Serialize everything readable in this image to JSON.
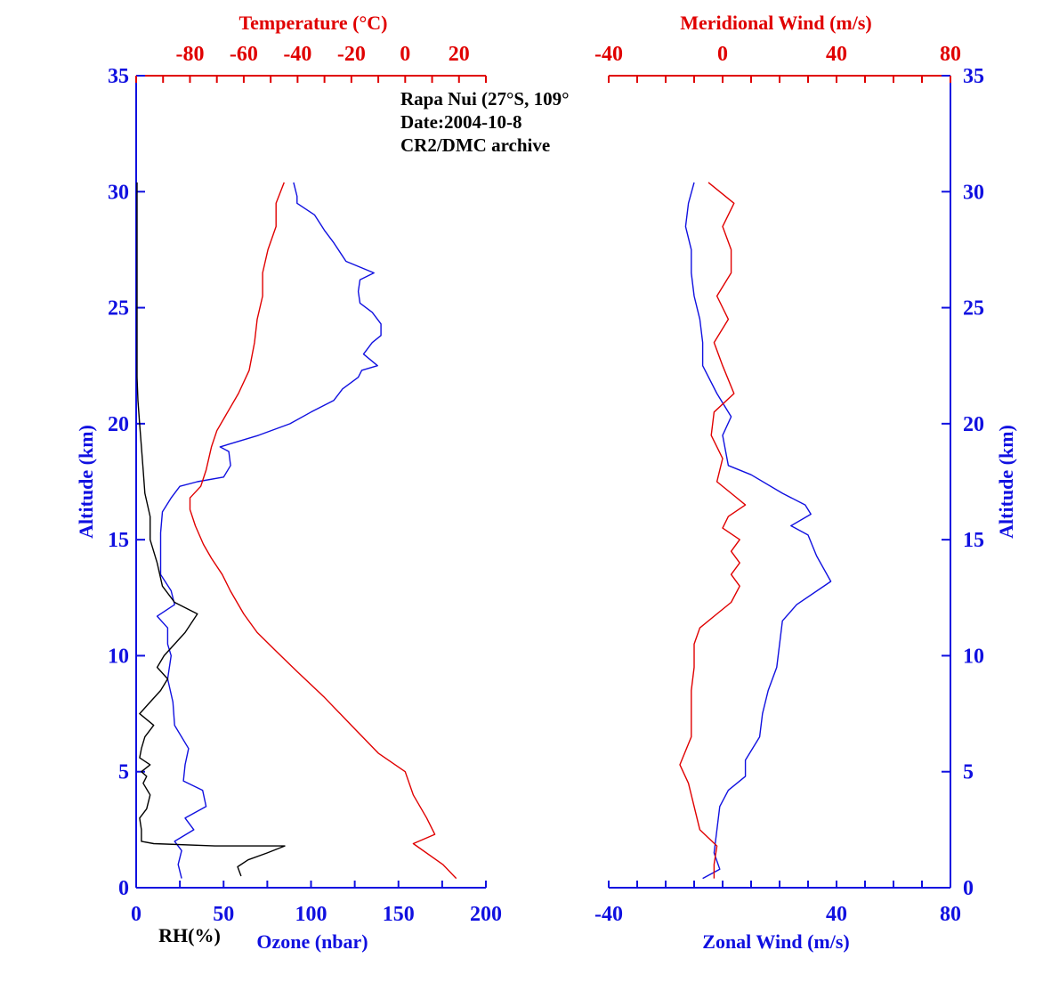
{
  "chart_data": [
    {
      "type": "line",
      "panel": "left",
      "annotation": [
        "Rapa Nui (27°S, 109°",
        "Date:2004-10-8",
        "CR2/DMC archive"
      ],
      "y_axis": {
        "label": "Altitude (km)",
        "range": [
          0,
          35
        ],
        "ticks": [
          0,
          5,
          10,
          15,
          20,
          25,
          30,
          35
        ]
      },
      "x_bottom": {
        "label_rh": "RH(%)",
        "label_ozone": "Ozone (nbar)",
        "range": [
          0,
          200
        ],
        "ticks": [
          0,
          50,
          100,
          150,
          200
        ]
      },
      "x_top": {
        "label": "Temperature (°C)",
        "range": [
          -100,
          30
        ],
        "ticks": [
          -80,
          -60,
          -40,
          -20,
          0,
          20
        ]
      },
      "series": [
        {
          "name": "Ozone (nbar)",
          "axis": "bottom",
          "color": "#1010e0",
          "points": [
            [
              26,
              0.4
            ],
            [
              24,
              1
            ],
            [
              26,
              1.6
            ],
            [
              22,
              2
            ],
            [
              33,
              2.5
            ],
            [
              28,
              3.0
            ],
            [
              40,
              3.5
            ],
            [
              38,
              4.2
            ],
            [
              27,
              4.6
            ],
            [
              28,
              5.3
            ],
            [
              30,
              6
            ],
            [
              22,
              7
            ],
            [
              21,
              8
            ],
            [
              18,
              9
            ],
            [
              20,
              10
            ],
            [
              18,
              10.5
            ],
            [
              18,
              11.2
            ],
            [
              12,
              11.7
            ],
            [
              22,
              12.2
            ],
            [
              20,
              12.8
            ],
            [
              14,
              13.5
            ],
            [
              14,
              14.5
            ],
            [
              14,
              15.3
            ],
            [
              15,
              16.2
            ],
            [
              20,
              16.8
            ],
            [
              25,
              17.3
            ],
            [
              35,
              17.5
            ],
            [
              50,
              17.7
            ],
            [
              54,
              18.2
            ],
            [
              53,
              18.8
            ],
            [
              48,
              19
            ],
            [
              70,
              19.5
            ],
            [
              88,
              20
            ],
            [
              100,
              20.5
            ],
            [
              113,
              21
            ],
            [
              118,
              21.5
            ],
            [
              127,
              22
            ],
            [
              129,
              22.3
            ],
            [
              138,
              22.5
            ],
            [
              130,
              23
            ],
            [
              135,
              23.5
            ],
            [
              140,
              23.8
            ],
            [
              140,
              24.3
            ],
            [
              135,
              24.8
            ],
            [
              128,
              25.2
            ],
            [
              127,
              25.7
            ],
            [
              128,
              26.2
            ],
            [
              136,
              26.5
            ],
            [
              120,
              27
            ],
            [
              113,
              27.8
            ],
            [
              108,
              28.3
            ],
            [
              102,
              29
            ],
            [
              92,
              29.5
            ],
            [
              92,
              29.8
            ],
            [
              90,
              30.4
            ]
          ]
        },
        {
          "name": "Temperature (°C)",
          "axis": "top",
          "color": "#e00000",
          "points": [
            [
              19,
              0.4
            ],
            [
              14,
              1
            ],
            [
              3,
              1.9
            ],
            [
              11,
              2.3
            ],
            [
              8,
              3
            ],
            [
              3,
              4
            ],
            [
              0,
              5
            ],
            [
              -10,
              5.8
            ],
            [
              -20,
              7
            ],
            [
              -30,
              8.2
            ],
            [
              -40,
              9.3
            ],
            [
              -48,
              10.2
            ],
            [
              -55,
              11
            ],
            [
              -60,
              11.8
            ],
            [
              -65,
              12.8
            ],
            [
              -68,
              13.5
            ],
            [
              -72,
              14.2
            ],
            [
              -75,
              14.8
            ],
            [
              -78,
              15.6
            ],
            [
              -80,
              16.3
            ],
            [
              -80,
              16.8
            ],
            [
              -76,
              17.3
            ],
            [
              -74,
              18.0
            ],
            [
              -72,
              19
            ],
            [
              -70,
              19.7
            ],
            [
              -66,
              20.5
            ],
            [
              -62,
              21.3
            ],
            [
              -58,
              22.3
            ],
            [
              -56,
              23.5
            ],
            [
              -55,
              24.5
            ],
            [
              -53,
              25.5
            ],
            [
              -53,
              26.5
            ],
            [
              -51,
              27.5
            ],
            [
              -48,
              28.5
            ],
            [
              -48,
              29.5
            ],
            [
              -45,
              30.4
            ]
          ]
        },
        {
          "name": "RH(%)",
          "axis": "bottom",
          "color": "#000000",
          "points": [
            [
              60,
              0.5
            ],
            [
              58,
              0.9
            ],
            [
              64,
              1.2
            ],
            [
              75,
              1.5
            ],
            [
              85,
              1.8
            ],
            [
              45,
              1.8
            ],
            [
              10,
              1.9
            ],
            [
              3,
              2
            ],
            [
              3,
              2.5
            ],
            [
              2,
              3
            ],
            [
              6,
              3.4
            ],
            [
              8,
              4
            ],
            [
              4,
              4.5
            ],
            [
              6,
              4.8
            ],
            [
              3,
              5
            ],
            [
              8,
              5.3
            ],
            [
              2,
              5.6
            ],
            [
              3,
              6
            ],
            [
              5,
              6.5
            ],
            [
              10,
              7
            ],
            [
              2,
              7.5
            ],
            [
              8,
              8
            ],
            [
              14,
              8.5
            ],
            [
              18,
              9
            ],
            [
              12,
              9.5
            ],
            [
              16,
              10
            ],
            [
              22,
              10.5
            ],
            [
              28,
              11
            ],
            [
              35,
              11.8
            ],
            [
              22,
              12.3
            ],
            [
              15,
              13
            ],
            [
              12,
              14
            ],
            [
              8,
              15
            ],
            [
              8,
              16
            ],
            [
              5,
              17
            ],
            [
              4,
              18
            ],
            [
              3,
              19
            ],
            [
              2,
              20
            ],
            [
              1,
              21
            ],
            [
              0.5,
              22
            ],
            [
              0.5,
              25
            ],
            [
              0.5,
              28
            ],
            [
              0.5,
              30.4
            ]
          ]
        }
      ]
    },
    {
      "type": "line",
      "panel": "right",
      "y_axis": {
        "label": "Altitude (km)",
        "range": [
          0,
          35
        ],
        "ticks": [
          0,
          5,
          10,
          15,
          20,
          25,
          30,
          35
        ]
      },
      "x_bottom": {
        "label": "Zonal Wind (m/s)",
        "range": [
          -40,
          80
        ],
        "ticks": [
          -40,
          40,
          80
        ]
      },
      "x_top": {
        "label": "Meridional Wind (m/s)",
        "range": [
          -40,
          80
        ],
        "ticks": [
          -40,
          0,
          40,
          80
        ]
      },
      "series": [
        {
          "name": "Zonal Wind (m/s)",
          "axis": "bottom",
          "color": "#1010e0",
          "points": [
            [
              -7,
              0.4
            ],
            [
              -1,
              0.8
            ],
            [
              -3,
              1.5
            ],
            [
              -2,
              2.5
            ],
            [
              -1,
              3.5
            ],
            [
              2,
              4.2
            ],
            [
              8,
              4.8
            ],
            [
              8,
              5.5
            ],
            [
              13,
              6.5
            ],
            [
              14,
              7.5
            ],
            [
              16,
              8.5
            ],
            [
              19,
              9.5
            ],
            [
              20,
              10.5
            ],
            [
              21,
              11.5
            ],
            [
              26,
              12.2
            ],
            [
              38,
              13.2
            ],
            [
              33,
              14.3
            ],
            [
              30,
              15.2
            ],
            [
              24,
              15.6
            ],
            [
              31,
              16.1
            ],
            [
              29,
              16.5
            ],
            [
              21,
              17.0
            ],
            [
              10,
              17.8
            ],
            [
              2,
              18.2
            ],
            [
              0,
              19.5
            ],
            [
              3,
              20.3
            ],
            [
              -2,
              21.3
            ],
            [
              -7,
              22.5
            ],
            [
              -7,
              23.5
            ],
            [
              -8,
              24.5
            ],
            [
              -10,
              25.5
            ],
            [
              -11,
              26.5
            ],
            [
              -11,
              27.5
            ],
            [
              -13,
              28.5
            ],
            [
              -12,
              29.5
            ],
            [
              -10,
              30.4
            ]
          ]
        },
        {
          "name": "Meridional Wind (m/s)",
          "axis": "top",
          "color": "#e00000",
          "points": [
            [
              -3,
              0.4
            ],
            [
              -3,
              1
            ],
            [
              -2,
              1.8
            ],
            [
              -8,
              2.5
            ],
            [
              -10,
              3.5
            ],
            [
              -12,
              4.5
            ],
            [
              -15,
              5.3
            ],
            [
              -11,
              6.5
            ],
            [
              -11,
              7.5
            ],
            [
              -11,
              8.5
            ],
            [
              -10,
              9.5
            ],
            [
              -10,
              10.5
            ],
            [
              -8,
              11.2
            ],
            [
              -2,
              11.8
            ],
            [
              3,
              12.3
            ],
            [
              6,
              13
            ],
            [
              3,
              13.5
            ],
            [
              6,
              14
            ],
            [
              3,
              14.5
            ],
            [
              6,
              15
            ],
            [
              0,
              15.5
            ],
            [
              2,
              16
            ],
            [
              8,
              16.5
            ],
            [
              3,
              17
            ],
            [
              -2,
              17.5
            ],
            [
              0,
              18.5
            ],
            [
              -4,
              19.5
            ],
            [
              -3,
              20.5
            ],
            [
              4,
              21.3
            ],
            [
              0,
              22.5
            ],
            [
              -3,
              23.5
            ],
            [
              2,
              24.5
            ],
            [
              -2,
              25.5
            ],
            [
              3,
              26.5
            ],
            [
              3,
              27.5
            ],
            [
              0,
              28.5
            ],
            [
              4,
              29.5
            ],
            [
              -5,
              30.4
            ]
          ]
        }
      ]
    }
  ]
}
